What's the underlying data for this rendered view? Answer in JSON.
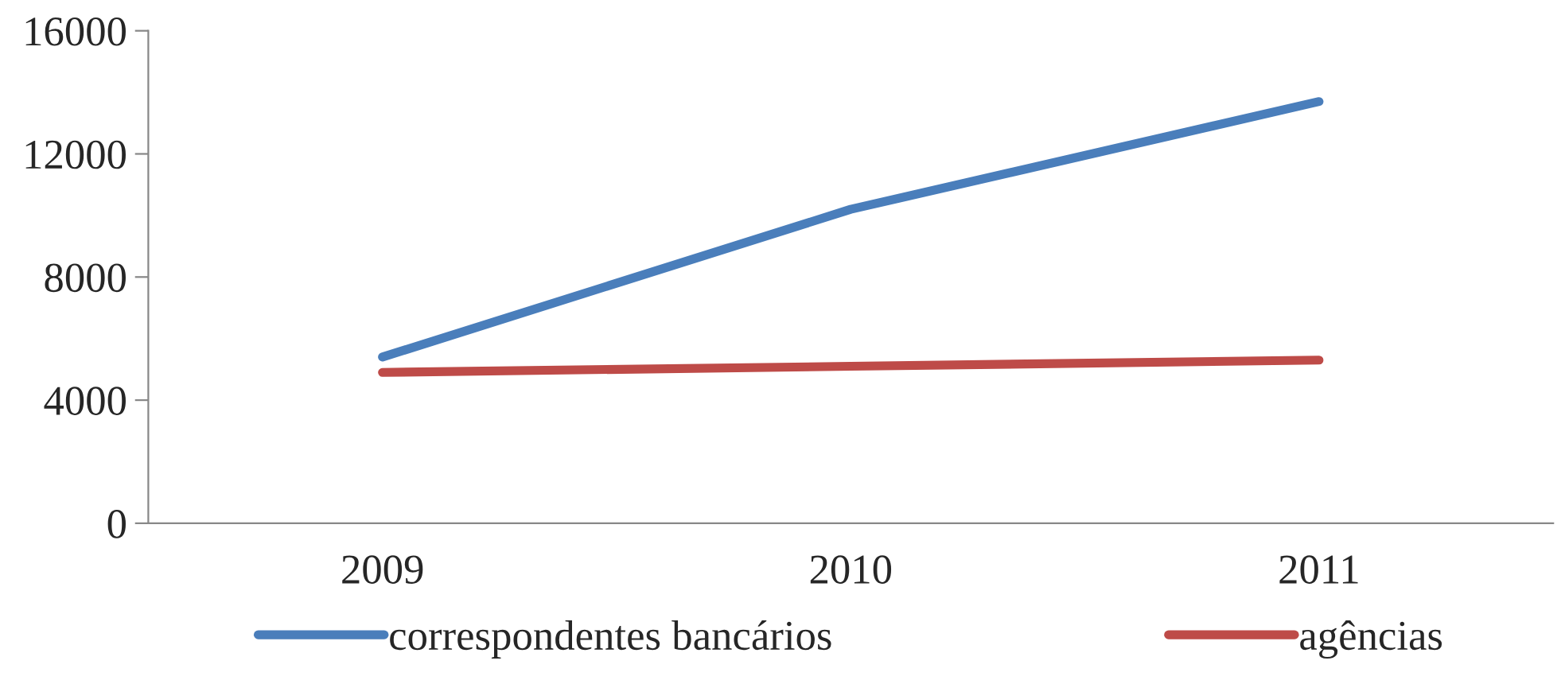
{
  "chart_data": {
    "type": "line",
    "categories": [
      "2009",
      "2010",
      "2011"
    ],
    "series": [
      {
        "name": "correspondentes bancários",
        "color": "#4a7ebb",
        "values": [
          5400,
          10200,
          13700
        ]
      },
      {
        "name": "agências",
        "color": "#be4b48",
        "values": [
          4900,
          5100,
          5300
        ]
      }
    ],
    "ylim": [
      0,
      16000
    ],
    "yticks": [
      0,
      4000,
      8000,
      12000,
      16000
    ],
    "grid": false,
    "legend": "bottom",
    "marker": "none",
    "line_style": "solid"
  }
}
